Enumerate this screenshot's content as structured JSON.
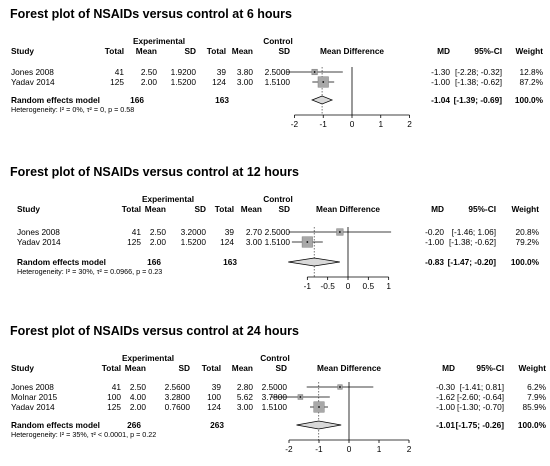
{
  "chart_data": [
    {
      "type": "forest",
      "title": "Forest plot of NSAIDs versus control at 6 hours",
      "headers": {
        "group_experimental": "Experimental",
        "group_control": "Control",
        "study": "Study",
        "total": "Total",
        "mean": "Mean",
        "sd": "SD",
        "plot": "Mean Difference",
        "md": "MD",
        "ci": "95%-CI",
        "weight": "Weight"
      },
      "studies": [
        {
          "name": "Jones 2008",
          "e_total": "41",
          "e_mean": "2.50",
          "e_sd": "1.9200",
          "c_total": "39",
          "c_mean": "3.80",
          "c_sd": "2.5000",
          "md_text": "-1.30",
          "ci_text": "[-2.28; -0.32]",
          "weight_text": "12.8%",
          "md": -1.3,
          "lo": -2.28,
          "hi": -0.32,
          "weight": 12.8
        },
        {
          "name": "Yadav 2014",
          "e_total": "125",
          "e_mean": "2.00",
          "e_sd": "1.5200",
          "c_total": "124",
          "c_mean": "3.00",
          "c_sd": "1.5100",
          "md_text": "-1.00",
          "ci_text": "[-1.38; -0.62]",
          "weight_text": "87.2%",
          "md": -1.0,
          "lo": -1.38,
          "hi": -0.62,
          "weight": 87.2
        }
      ],
      "summary": {
        "label": "Random effects model",
        "e_total": "166",
        "c_total": "163",
        "md_text": "-1.04",
        "ci_text": "[-1.39; -0.69]",
        "weight_text": "100.0%",
        "md": -1.04,
        "lo": -1.39,
        "hi": -0.69
      },
      "heterogeneity": "Heterogeneity: I² = 0%, τ² = 0, p = 0.58",
      "xlim": [
        -2,
        2
      ],
      "ticks": [
        -2,
        -1,
        0,
        1,
        2
      ],
      "tick_labels": [
        "-2",
        "-1",
        "0",
        "1",
        "2"
      ]
    },
    {
      "type": "forest",
      "title": "Forest plot of NSAIDs versus control at 12 hours",
      "headers": {
        "group_experimental": "Experimental",
        "group_control": "Control",
        "study": "Study",
        "total": "Total",
        "mean": "Mean",
        "sd": "SD",
        "plot": "Mean Difference",
        "md": "MD",
        "ci": "95%-CI",
        "weight": "Weight"
      },
      "studies": [
        {
          "name": "Jones 2008",
          "e_total": "41",
          "e_mean": "2.50",
          "e_sd": "3.2000",
          "c_total": "39",
          "c_mean": "2.70",
          "c_sd": "2.5000",
          "md_text": "-0.20",
          "ci_text": "[-1.46; 1.06]",
          "weight_text": "20.8%",
          "md": -0.2,
          "lo": -1.46,
          "hi": 1.06,
          "weight": 20.8
        },
        {
          "name": "Yadav 2014",
          "e_total": "125",
          "e_mean": "2.00",
          "e_sd": "1.5200",
          "c_total": "124",
          "c_mean": "3.00",
          "c_sd": "1.5100",
          "md_text": "-1.00",
          "ci_text": "[-1.38; -0.62]",
          "weight_text": "79.2%",
          "md": -1.0,
          "lo": -1.38,
          "hi": -0.62,
          "weight": 79.2
        }
      ],
      "summary": {
        "label": "Random effects model",
        "e_total": "166",
        "c_total": "163",
        "md_text": "-0.83",
        "ci_text": "[-1.47; -0.20]",
        "weight_text": "100.0%",
        "md": -0.83,
        "lo": -1.47,
        "hi": -0.2
      },
      "heterogeneity": "Heterogeneity: I² = 30%, τ² = 0.0966, p = 0.23",
      "xlim": [
        -1.5,
        1.5
      ],
      "ticks": [
        -1,
        -0.5,
        0,
        0.5,
        1
      ],
      "tick_labels": [
        "-1",
        "-0.5",
        "0",
        "0.5",
        "1"
      ]
    },
    {
      "type": "forest",
      "title": "Forest plot of NSAIDs versus control at 24 hours",
      "headers": {
        "group_experimental": "Experimental",
        "group_control": "Control",
        "study": "Study",
        "total": "Total",
        "mean": "Mean",
        "sd": "SD",
        "plot": "Mean Difference",
        "md": "MD",
        "ci": "95%-CI",
        "weight": "Weight"
      },
      "studies": [
        {
          "name": "Jones 2008",
          "e_total": "41",
          "e_mean": "2.50",
          "e_sd": "2.5600",
          "c_total": "39",
          "c_mean": "2.80",
          "c_sd": "2.5000",
          "md_text": "-0.30",
          "ci_text": "[-1.41; 0.81]",
          "weight_text": "6.2%",
          "md": -0.3,
          "lo": -1.41,
          "hi": 0.81,
          "weight": 6.2
        },
        {
          "name": "Molnar 2015",
          "e_total": "100",
          "e_mean": "4.00",
          "e_sd": "3.2800",
          "c_total": "100",
          "c_mean": "5.62",
          "c_sd": "3.7800",
          "md_text": "-1.62",
          "ci_text": "[-2.60; -0.64]",
          "weight_text": "7.9%",
          "md": -1.62,
          "lo": -2.6,
          "hi": -0.64,
          "weight": 7.9
        },
        {
          "name": "Yadav 2014",
          "e_total": "125",
          "e_mean": "2.00",
          "e_sd": "0.7600",
          "c_total": "124",
          "c_mean": "3.00",
          "c_sd": "1.5100",
          "md_text": "-1.00",
          "ci_text": "[-1.30; -0.70]",
          "weight_text": "85.9%",
          "md": -1.0,
          "lo": -1.3,
          "hi": -0.7,
          "weight": 85.9
        }
      ],
      "summary": {
        "label": "Random effects model",
        "e_total": "266",
        "c_total": "263",
        "md_text": "-1.01",
        "ci_text": "[-1.75; -0.26]",
        "weight_text": "100.0%",
        "md": -1.01,
        "lo": -1.75,
        "hi": -0.26
      },
      "heterogeneity": "Heterogeneity: I² = 35%, τ² < 0.0001, p = 0.22",
      "xlim": [
        -2,
        2
      ],
      "ticks": [
        -2,
        -1,
        0,
        1,
        2
      ],
      "tick_labels": [
        "-2",
        "-1",
        "0",
        "1",
        "2"
      ]
    }
  ],
  "colors": {
    "box": "#a8a8a8",
    "box_stroke": "#7a7a7a",
    "ci_line": "#000000",
    "diamond": "#d9d9d9",
    "dotted": "#555555"
  }
}
